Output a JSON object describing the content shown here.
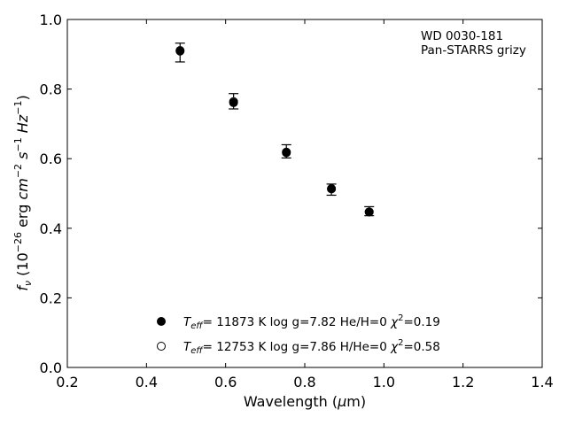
{
  "chart_data": {
    "type": "scatter",
    "xlabel": "Wavelength (μm)",
    "ylabel": "f_ν (10^−26 erg cm^−2 s^−1 Hz^−1)",
    "xlim": [
      0.2,
      1.4
    ],
    "ylim": [
      0.0,
      1.0
    ],
    "x_ticks": [
      "0.2",
      "0.4",
      "0.6",
      "0.8",
      "1.0",
      "1.2",
      "1.4"
    ],
    "y_ticks": [
      "0.0",
      "0.2",
      "0.4",
      "0.6",
      "0.8",
      "1.0"
    ],
    "grid": false,
    "annotation": {
      "line1": "WD 0030-181",
      "line2": "Pan-STARRS grizy"
    },
    "observed": {
      "x": [
        0.4849,
        0.6201,
        0.7535,
        0.8674,
        0.9628
      ],
      "y": [
        0.905,
        0.765,
        0.621,
        0.511,
        0.449
      ],
      "yerr": [
        0.027,
        0.022,
        0.019,
        0.016,
        0.013
      ]
    },
    "series": [
      {
        "marker": "filled",
        "teff": "11873",
        "logg": "7.82",
        "comp": "He/H=0",
        "chi2": "0.19",
        "x": [
          0.4849,
          0.6201,
          0.7535,
          0.8674,
          0.9628
        ],
        "y": [
          0.909,
          0.761,
          0.617,
          0.514,
          0.447
        ]
      },
      {
        "marker": "open",
        "teff": "12753",
        "logg": "7.86",
        "comp": "H/He=0",
        "chi2": "0.58",
        "x": [
          0.4849,
          0.6201,
          0.7535,
          0.8674,
          0.9628
        ],
        "y": [
          0.911,
          0.764,
          0.619,
          0.513,
          0.447
        ]
      }
    ]
  }
}
